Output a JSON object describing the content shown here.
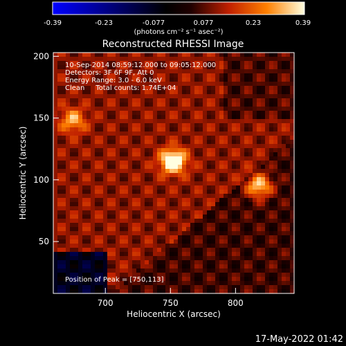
{
  "chart_data": {
    "type": "heatmap",
    "title": "Reconstructed RHESSI Image",
    "xlabel": "Heliocentric X (arcsec)",
    "ylabel": "Heliocentric Y (arcsec)",
    "xlim": [
      660,
      845
    ],
    "ylim": [
      8,
      203
    ],
    "x_ticks": [
      700,
      750,
      800
    ],
    "y_ticks": [
      50,
      100,
      150,
      200
    ],
    "colorbar": {
      "ticks": [
        "-0.39",
        "-0.23",
        "-0.077",
        "0.077",
        "0.23",
        "0.39"
      ],
      "range": [
        -0.39,
        0.39
      ],
      "unit_label": "(photons cm⁻² s⁻¹ asec⁻²)"
    },
    "annotations": [
      "10-Sep-2014 08:59:12.000 to 09:05:12.000",
      "Detectors: 3F 6F 9F, Att 0",
      "Energy Range: 3.0 - 6.0 keV",
      "Clean     Total counts: 1.74E+04"
    ],
    "peak_label": "Position of Peak = [750,113]",
    "sources": [
      {
        "x": 752,
        "y": 115,
        "peak": 0.39
      },
      {
        "x": 818,
        "y": 95,
        "peak": 0.3
      },
      {
        "x": 675,
        "y": 148,
        "peak": 0.2
      }
    ]
  },
  "footer": {
    "timestamp": "17-May-2022 01:42"
  }
}
